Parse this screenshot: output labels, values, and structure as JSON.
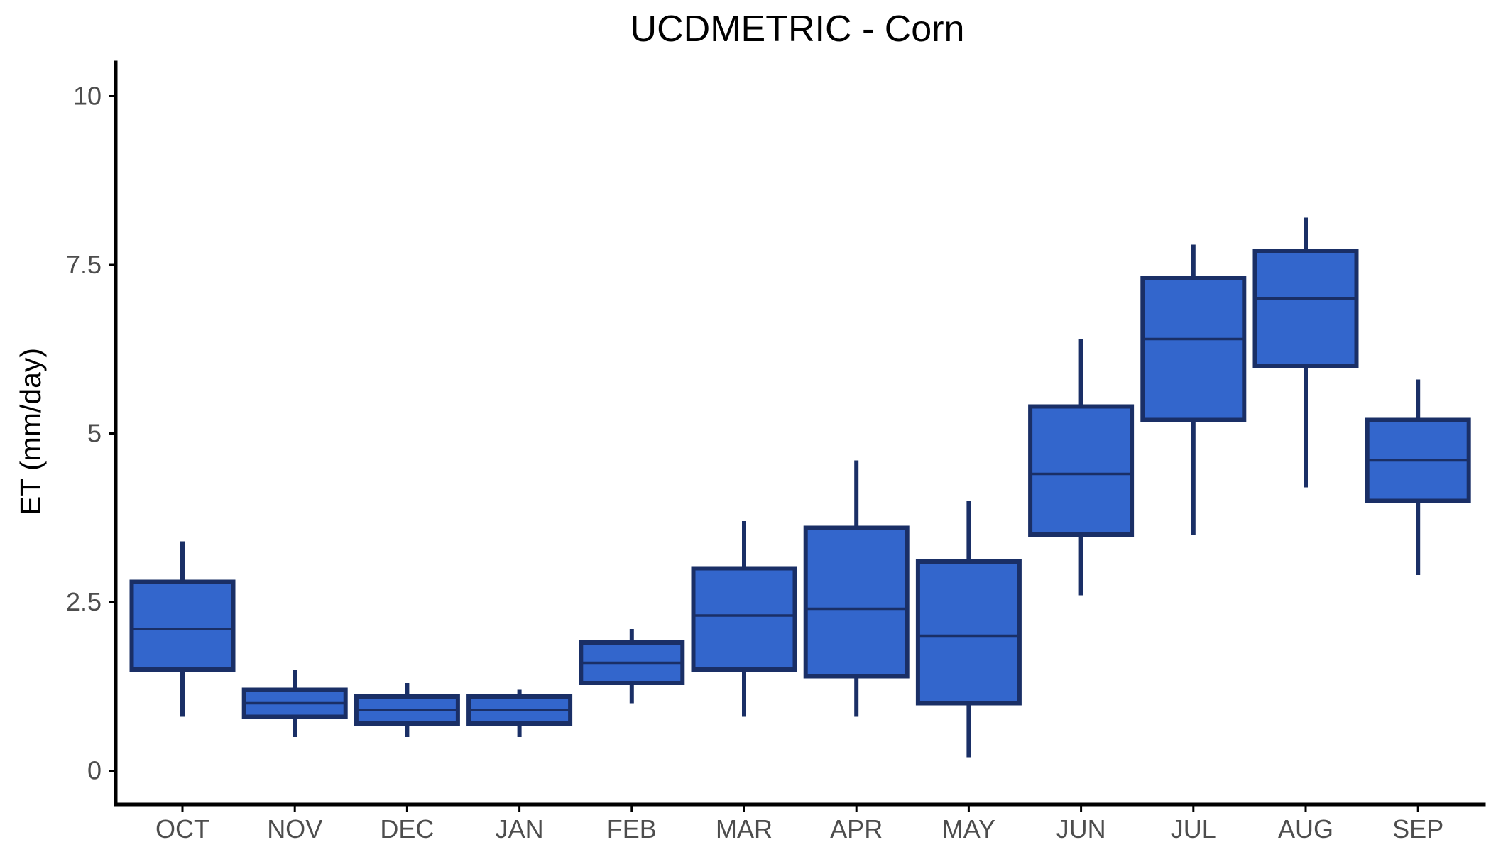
{
  "chart_data": {
    "type": "boxplot",
    "title": "UCDMETRIC - Corn",
    "xlabel": "",
    "ylabel": "ET (mm/day)",
    "ylim": [
      -0.5,
      10.5
    ],
    "y_ticks": [
      0,
      2.5,
      5,
      7.5,
      10
    ],
    "y_tick_labels": [
      "0",
      "2.5",
      "5",
      "7.5",
      "10"
    ],
    "grid": false,
    "legend": "none",
    "categories": [
      "OCT",
      "NOV",
      "DEC",
      "JAN",
      "FEB",
      "MAR",
      "APR",
      "MAY",
      "JUN",
      "JUL",
      "AUG",
      "SEP"
    ],
    "series": [
      {
        "values": [
          {
            "min": 0.8,
            "q1": 1.5,
            "median": 2.1,
            "q3": 2.8,
            "max": 3.4
          },
          {
            "min": 0.5,
            "q1": 0.8,
            "median": 1.0,
            "q3": 1.2,
            "max": 1.5
          },
          {
            "min": 0.5,
            "q1": 0.7,
            "median": 0.9,
            "q3": 1.1,
            "max": 1.3
          },
          {
            "min": 0.5,
            "q1": 0.7,
            "median": 0.9,
            "q3": 1.1,
            "max": 1.2
          },
          {
            "min": 1.0,
            "q1": 1.3,
            "median": 1.6,
            "q3": 1.9,
            "max": 2.1
          },
          {
            "min": 0.8,
            "q1": 1.5,
            "median": 2.3,
            "q3": 3.0,
            "max": 3.7
          },
          {
            "min": 0.8,
            "q1": 1.4,
            "median": 2.4,
            "q3": 3.6,
            "max": 4.6
          },
          {
            "min": 0.2,
            "q1": 1.0,
            "median": 2.0,
            "q3": 3.1,
            "max": 4.0
          },
          {
            "min": 2.6,
            "q1": 3.5,
            "median": 4.4,
            "q3": 5.4,
            "max": 6.4
          },
          {
            "min": 3.5,
            "q1": 5.2,
            "median": 6.4,
            "q3": 7.3,
            "max": 7.8
          },
          {
            "min": 4.2,
            "q1": 6.0,
            "median": 7.0,
            "q3": 7.7,
            "max": 8.2
          },
          {
            "min": 2.9,
            "q1": 4.0,
            "median": 4.6,
            "q3": 5.2,
            "max": 5.8
          }
        ]
      }
    ],
    "colors": {
      "box_fill": "#3366cc",
      "box_outline": "#1a2f66",
      "axis": "#000000",
      "tick_text": "#4d4d4d"
    }
  }
}
